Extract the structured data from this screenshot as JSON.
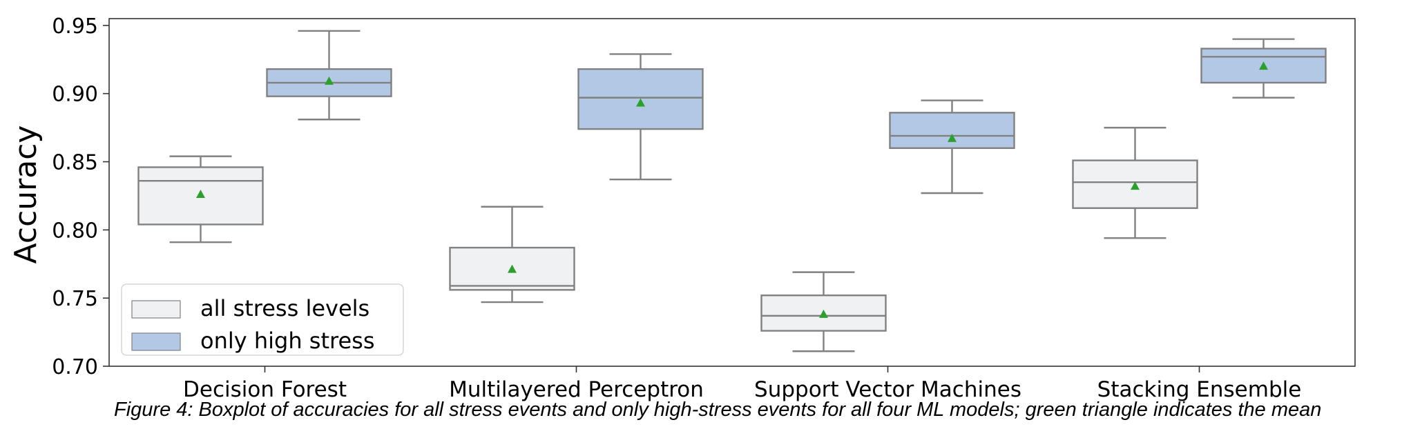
{
  "chart_data": {
    "type": "boxplot",
    "title_fragment": "...g ...g ...y",
    "ylabel": "Accuracy",
    "xlabel": "",
    "ylim": [
      0.7,
      0.955
    ],
    "yticks": [
      "0.70",
      "0.75",
      "0.80",
      "0.85",
      "0.90",
      "0.95"
    ],
    "categories": [
      "Decision Forest",
      "Multilayered Perceptron",
      "Support Vector Machines",
      "Stacking Ensemble"
    ],
    "grid": false,
    "legend_position": "lower-left",
    "mean_marker": "green triangle",
    "series": [
      {
        "name": "all stress levels",
        "color": "#f0f1f2",
        "boxes": [
          {
            "whislo": 0.791,
            "q1": 0.804,
            "med": 0.836,
            "q3": 0.846,
            "whishi": 0.854,
            "mean": 0.826
          },
          {
            "whislo": 0.747,
            "q1": 0.756,
            "med": 0.759,
            "q3": 0.787,
            "whishi": 0.817,
            "mean": 0.771
          },
          {
            "whislo": 0.711,
            "q1": 0.726,
            "med": 0.737,
            "q3": 0.752,
            "whishi": 0.769,
            "mean": 0.738
          },
          {
            "whislo": 0.794,
            "q1": 0.816,
            "med": 0.835,
            "q3": 0.851,
            "whishi": 0.875,
            "mean": 0.832
          }
        ]
      },
      {
        "name": "only high stress",
        "color": "#b3c8e4",
        "boxes": [
          {
            "whislo": 0.881,
            "q1": 0.898,
            "med": 0.908,
            "q3": 0.918,
            "whishi": 0.946,
            "mean": 0.909
          },
          {
            "whislo": 0.837,
            "q1": 0.874,
            "med": 0.897,
            "q3": 0.918,
            "whishi": 0.929,
            "mean": 0.893
          },
          {
            "whislo": 0.827,
            "q1": 0.86,
            "med": 0.869,
            "q3": 0.886,
            "whishi": 0.895,
            "mean": 0.867
          },
          {
            "whislo": 0.897,
            "q1": 0.908,
            "med": 0.927,
            "q3": 0.933,
            "whishi": 0.94,
            "mean": 0.92
          }
        ]
      }
    ],
    "caption": "Figure 4: Boxplot of accuracies for all stress events and only high-stress events for all four ML models; green triangle indicates the mean"
  },
  "style": {
    "box_edge_color": "#808080",
    "mean_color": "#2ca02c",
    "axis_color": "#333333"
  }
}
